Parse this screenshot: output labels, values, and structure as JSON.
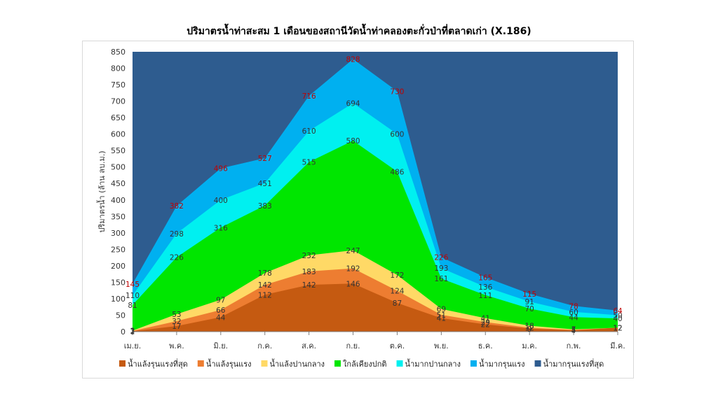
{
  "chart_data": {
    "type": "area",
    "title": "ปริมาตรน้ำท่าสะสม 1 เดือนของสถานีวัดน้ำท่าคลองตะกั่วป่าที่ตลาดเก่า (X.186)",
    "ylabel": "ปริมาตรน้ำ (ล้าน ลบ.ม.)",
    "xlabel": "",
    "ylim": [
      0,
      850
    ],
    "yticks": [
      0,
      50,
      100,
      150,
      200,
      250,
      300,
      350,
      400,
      450,
      500,
      550,
      600,
      650,
      700,
      750,
      800,
      850
    ],
    "categories": [
      "เม.ย.",
      "พ.ค.",
      "มิ.ย.",
      "ก.ค.",
      "ส.ค.",
      "ก.ย.",
      "ต.ค.",
      "พ.ย.",
      "ธ.ค.",
      "ม.ค.",
      "ก.พ.",
      "มี.ค."
    ],
    "stacked_thresholds": true,
    "legend_position": "bottom",
    "series": [
      {
        "name": "น้ำแล้งรุนแรงที่สุด",
        "color": "#c55a11",
        "values": [
          1,
          17,
          44,
          112,
          142,
          146,
          87,
          41,
          22,
          9,
          4,
          12
        ]
      },
      {
        "name": "น้ำแล้งรุนแรง",
        "color": "#ed7d31",
        "values": [
          2,
          32,
          66,
          142,
          183,
          192,
          124,
          51,
          29,
          12,
          5,
          12
        ]
      },
      {
        "name": "น้ำแล้งปานกลาง",
        "color": "#ffd966",
        "values": [
          3,
          53,
          97,
          178,
          232,
          247,
          172,
          69,
          41,
          18,
          7,
          12
        ]
      },
      {
        "name": "ใกล้เคียงปกติ",
        "color": "#00e600",
        "values": [
          81,
          226,
          316,
          383,
          515,
          580,
          486,
          161,
          111,
          70,
          44,
          40
        ]
      },
      {
        "name": "น้ำมากปานกลาง",
        "color": "#00f0f0",
        "values": [
          110,
          298,
          400,
          451,
          610,
          694,
          600,
          193,
          136,
          91,
          60,
          50
        ]
      },
      {
        "name": "น้ำมากรุนแรง",
        "color": "#00b0f0",
        "values": [
          145,
          382,
          496,
          527,
          716,
          828,
          730,
          226,
          165,
          115,
          78,
          64
        ]
      },
      {
        "name": "น้ำมากรุนแรงที่สุด",
        "color": "#2e5c8f",
        "values": [
          850,
          850,
          850,
          850,
          850,
          850,
          850,
          850,
          850,
          850,
          850,
          850
        ]
      }
    ],
    "data_labels": {
      "น้ำแล้งรุนแรงที่สุด": [
        "1",
        "17",
        "44",
        "112",
        "142",
        "146",
        "87",
        "41",
        "22",
        "9",
        "4",
        "12"
      ],
      "น้ำแล้งรุนแรง": [
        "2",
        "32",
        "66",
        "142",
        "183",
        "192",
        "124",
        "51",
        "29",
        "12",
        "5",
        "12"
      ],
      "น้ำแล้งปานกลาง": [
        "3",
        "53",
        "97",
        "178",
        "232",
        "247",
        "172",
        "69",
        "41",
        "18",
        "7",
        "12"
      ],
      "ใกล้เคียงปกติ": [
        "81",
        "226",
        "316",
        "383",
        "515",
        "580",
        "486",
        "161",
        "111",
        "70",
        "44",
        "40"
      ],
      "น้ำมากปานกลาง": [
        "110",
        "298",
        "400",
        "451",
        "610",
        "694",
        "600",
        "193",
        "136",
        "91",
        "60",
        "50"
      ],
      "น้ำมากรุนแรง": [
        "145",
        "382",
        "496",
        "527",
        "716",
        "828",
        "730",
        "226",
        "165",
        "115",
        "78",
        "64"
      ]
    }
  }
}
